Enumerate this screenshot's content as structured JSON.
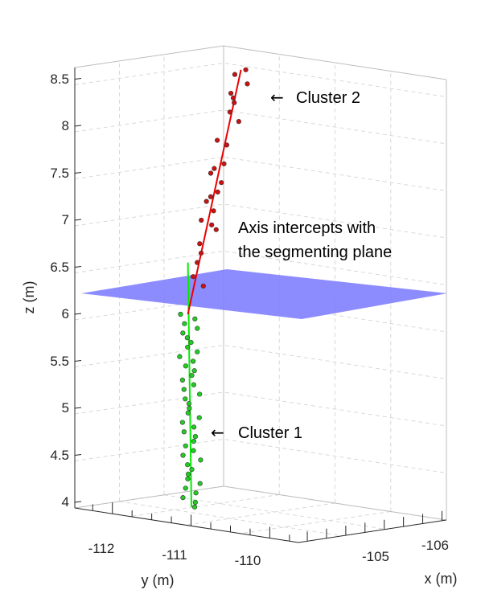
{
  "chart_data": {
    "type": "scatter",
    "projection": "3d",
    "axes": {
      "x": {
        "label": "x (m)",
        "ticks": [
          -105,
          -106
        ],
        "tick_labels": [
          "-105",
          "-106"
        ]
      },
      "y": {
        "label": "y (m)",
        "ticks": [
          -112,
          -111,
          -110
        ],
        "tick_labels": [
          "-112",
          "-111",
          "-110"
        ]
      },
      "z": {
        "label": "z (m)",
        "range": [
          3.9,
          8.65
        ],
        "ticks": [
          4,
          4.5,
          5,
          5.5,
          6,
          6.5,
          7,
          7.5,
          8,
          8.5
        ],
        "tick_labels": [
          "4",
          "4.5",
          "5",
          "5.5",
          "6",
          "6.5",
          "7",
          "7.5",
          "8",
          "8.5"
        ]
      }
    },
    "grid": true,
    "segmenting_plane": {
      "z": 6.2,
      "color": "#8080ff"
    },
    "series": [
      {
        "name": "Cluster 1",
        "marker_color": "#22cc22",
        "line_color": "#00ee00",
        "axis_line": [
          [
            -110.75,
            3.95
          ],
          [
            -110.8,
            6.55
          ]
        ],
        "z": [
          3.95,
          4.0,
          4.05,
          4.1,
          4.15,
          4.2,
          4.25,
          4.3,
          4.35,
          4.4,
          4.45,
          4.5,
          4.55,
          4.6,
          4.65,
          4.7,
          4.75,
          4.8,
          4.85,
          4.9,
          4.95,
          5.0,
          5.05,
          5.1,
          5.15,
          5.2,
          5.25,
          5.3,
          5.35,
          5.4,
          5.45,
          5.5,
          5.55,
          5.6,
          5.65,
          5.7,
          5.75,
          5.8,
          5.85,
          5.9,
          5.95,
          6.0
        ]
      },
      {
        "name": "Cluster 2",
        "marker_color": "#cc1111",
        "line_color": "#ee0000",
        "axis_line": [
          [
            -110.8,
            6.0
          ],
          [
            -110.05,
            8.6
          ]
        ],
        "z": [
          6.3,
          6.4,
          6.55,
          6.65,
          6.75,
          6.9,
          7.0,
          7.1,
          7.2,
          7.3,
          7.4,
          7.55,
          7.6,
          7.85,
          8.05,
          8.15,
          8.25,
          8.3,
          8.35,
          8.45,
          8.55,
          8.6,
          7.5,
          7.8,
          6.95,
          7.25
        ]
      }
    ],
    "annotations": [
      {
        "arrow": "←",
        "text": "Cluster 2"
      },
      {
        "lines": [
          "Axis intercepts with",
          "the segmenting plane"
        ]
      },
      {
        "arrow": "←",
        "text": "Cluster 1"
      }
    ]
  }
}
